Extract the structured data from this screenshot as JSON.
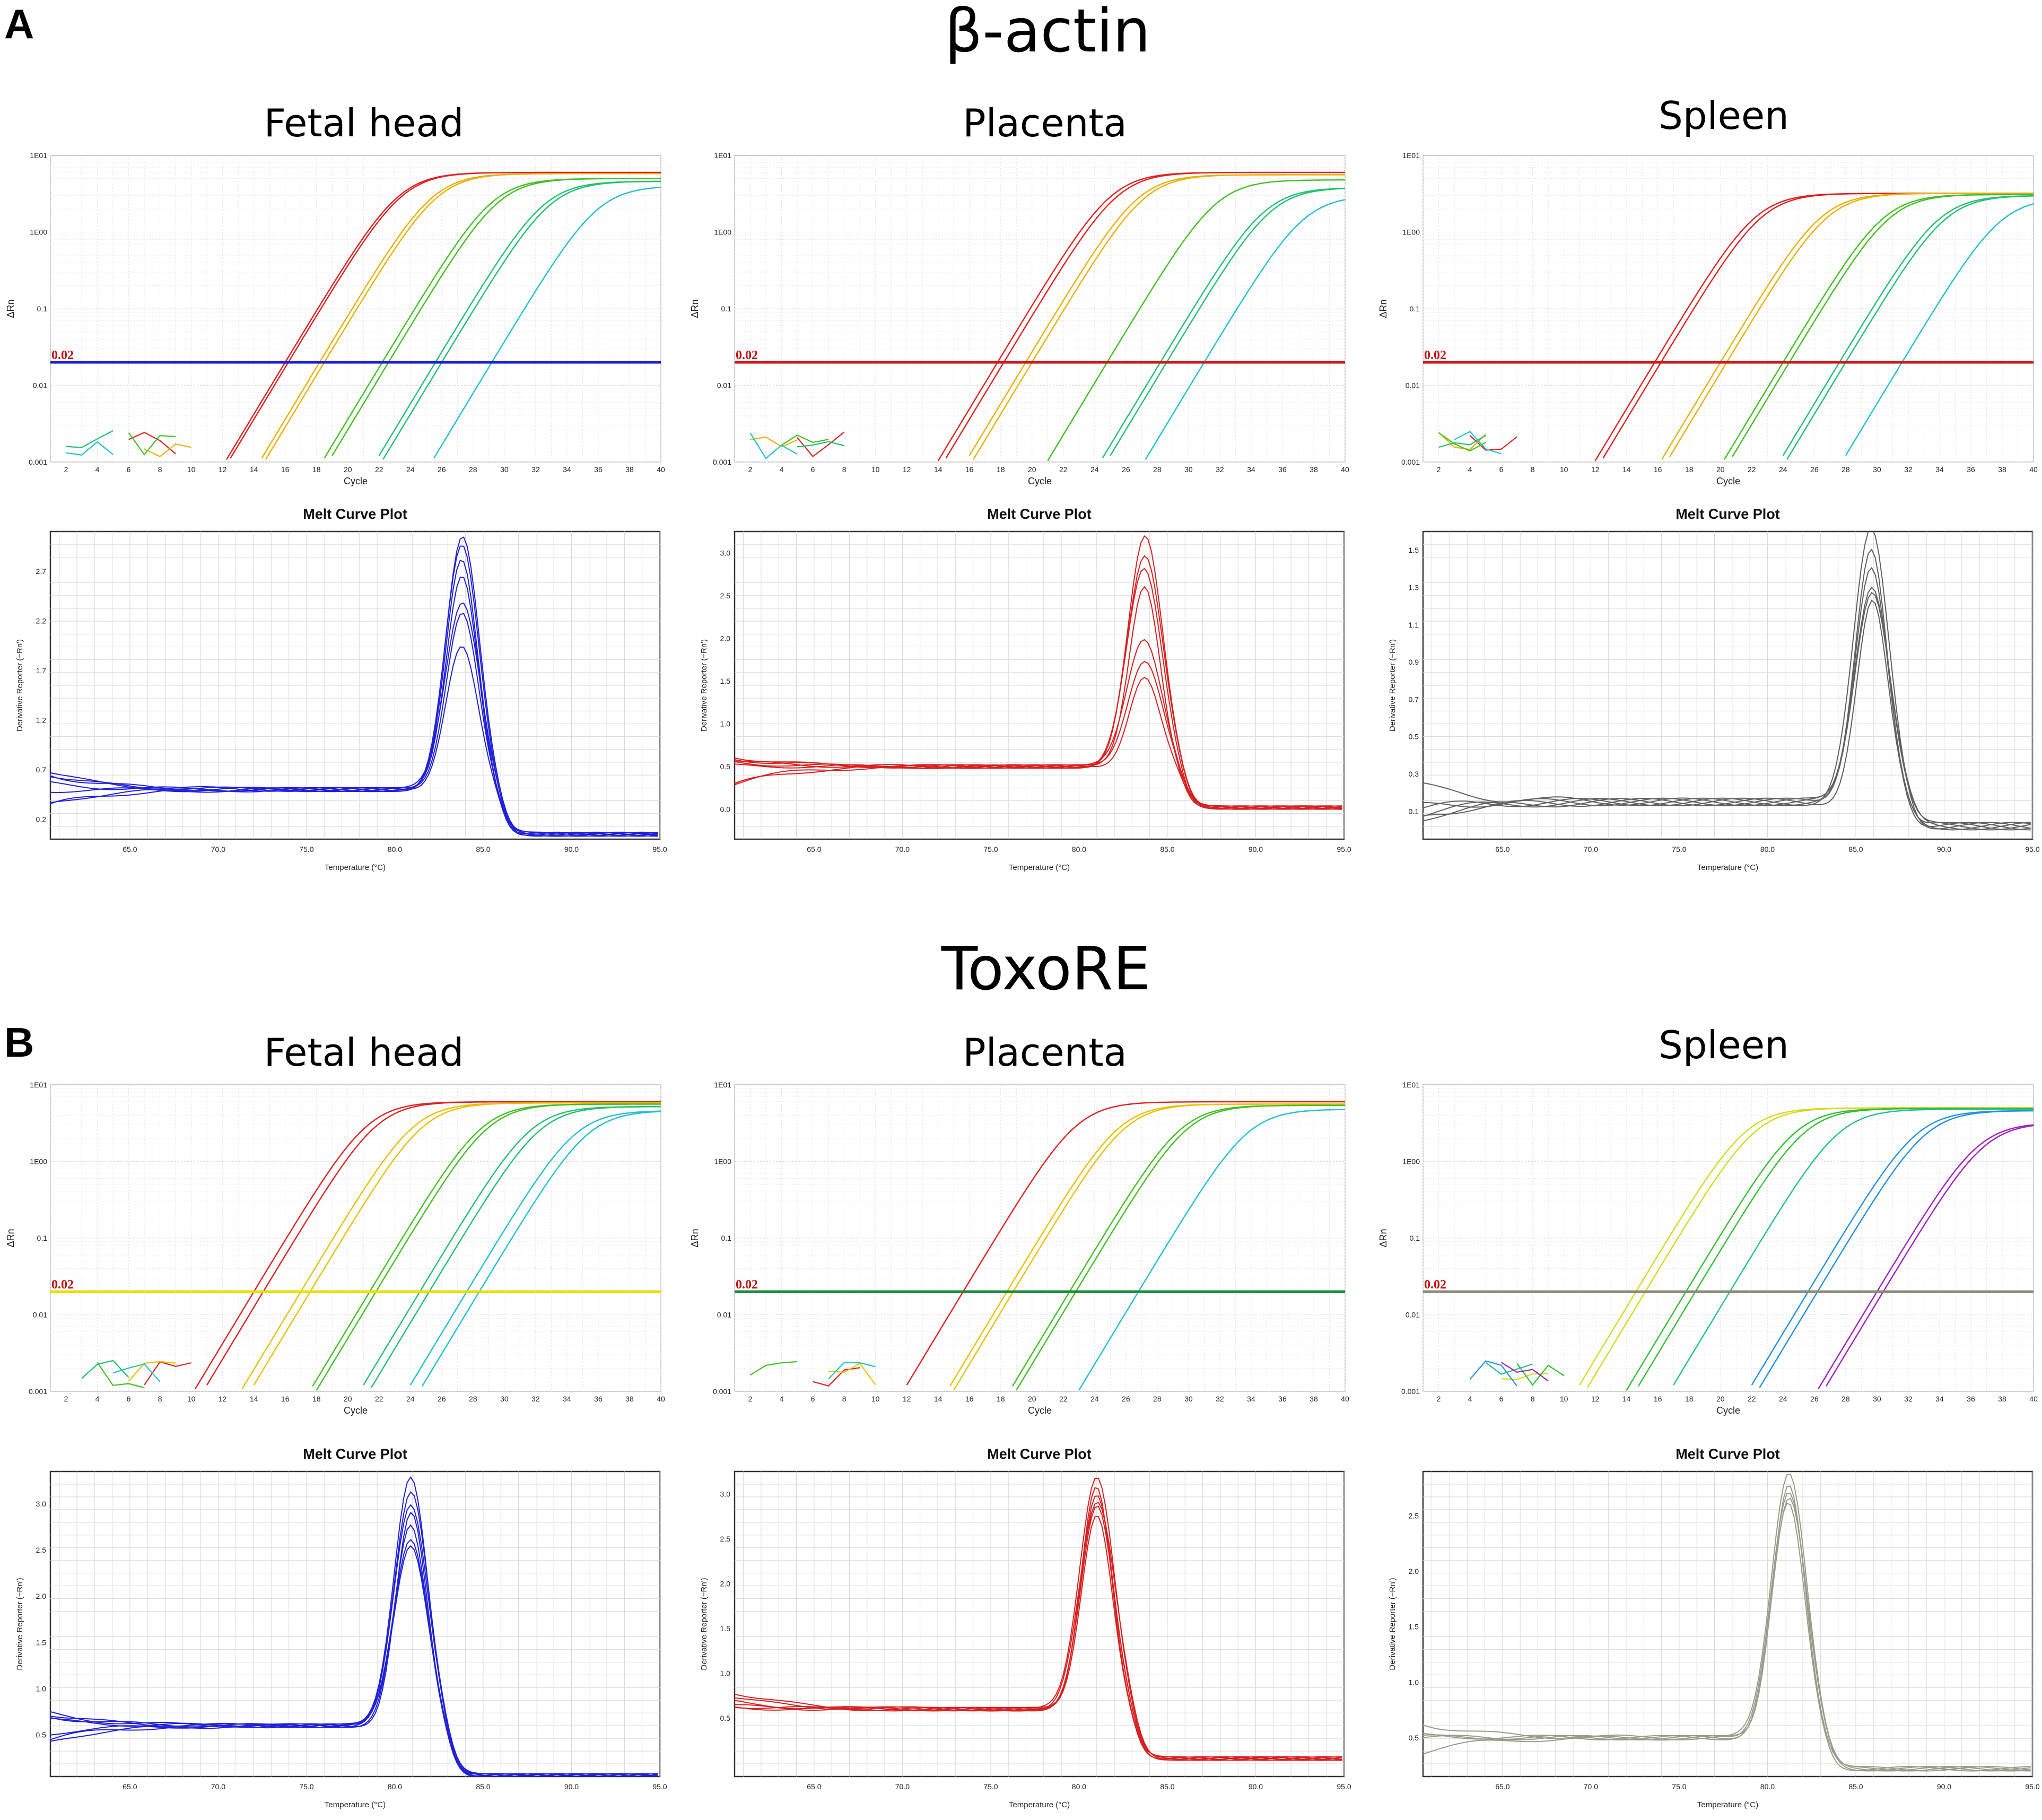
{
  "figure": {
    "panels": [
      {
        "letter": "A",
        "gene": "β-actin"
      },
      {
        "letter": "B",
        "gene": "ToxoRE"
      }
    ],
    "tissues": [
      "Fetal head",
      "Placenta",
      "Spleen"
    ]
  },
  "chart_data": [
    {
      "id": "A-fetal-amp",
      "type": "line",
      "scale": "log",
      "xlabel": "Cycle",
      "ylabel": "ΔRn",
      "xlim": [
        1,
        40
      ],
      "xticks": [
        2,
        4,
        6,
        8,
        10,
        12,
        14,
        16,
        18,
        20,
        22,
        24,
        26,
        28,
        30,
        32,
        34,
        36,
        38,
        40
      ],
      "ylim": [
        0.001,
        10
      ],
      "yticks": [
        "1E01",
        "1E00",
        "0.1",
        "0.01",
        "0.001"
      ],
      "threshold": 0.02,
      "threshold_label": "0.02",
      "threshold_color": "#1c1cd0",
      "series": [
        {
          "color": "#e02020",
          "ct": [
            16.0,
            16.2
          ],
          "plateau": 6.0
        },
        {
          "color": "#e8b000",
          "ct": [
            18.2,
            18.5
          ],
          "plateau": 5.8
        },
        {
          "color": "#40c020",
          "ct": [
            22.2,
            22.6
          ],
          "plateau": 5.0
        },
        {
          "color": "#20c070",
          "ct": [
            25.6,
            26.0
          ],
          "plateau": 4.6
        },
        {
          "color": "#20c0d0",
          "ct": [
            29.2
          ],
          "plateau": 4.0
        }
      ]
    },
    {
      "id": "A-placenta-amp",
      "type": "line",
      "scale": "log",
      "xlabel": "Cycle",
      "ylabel": "ΔRn",
      "xlim": [
        1,
        40
      ],
      "xticks": [
        2,
        4,
        6,
        8,
        10,
        12,
        14,
        16,
        18,
        20,
        22,
        24,
        26,
        28,
        30,
        32,
        34,
        36,
        38,
        40
      ],
      "ylim": [
        0.001,
        10
      ],
      "yticks": [
        "1E01",
        "1E00",
        "0.1",
        "0.01",
        "0.001"
      ],
      "threshold": 0.02,
      "threshold_label": "0.02",
      "threshold_color": "#c81818",
      "series": [
        {
          "color": "#e02020",
          "ct": [
            17.8,
            18.2
          ],
          "plateau": 6.0
        },
        {
          "color": "#e8b000",
          "ct": [
            19.6,
            20.0
          ],
          "plateau": 5.6
        },
        {
          "color": "#40c020",
          "ct": [
            24.8
          ],
          "plateau": 4.8
        },
        {
          "color": "#20c070",
          "ct": [
            28.2,
            28.6
          ],
          "plateau": 3.8
        },
        {
          "color": "#20c0d0",
          "ct": [
            31.0
          ],
          "plateau": 3.0
        }
      ]
    },
    {
      "id": "A-spleen-amp",
      "type": "line",
      "scale": "log",
      "xlabel": "Cycle",
      "ylabel": "ΔRn",
      "xlim": [
        1,
        40
      ],
      "xticks": [
        2,
        4,
        6,
        8,
        10,
        12,
        14,
        16,
        18,
        20,
        22,
        24,
        26,
        28,
        30,
        32,
        34,
        36,
        38,
        40
      ],
      "ylim": [
        0.001,
        10
      ],
      "yticks": [
        "1E01",
        "1E00",
        "0.1",
        "0.01",
        "0.001"
      ],
      "threshold": 0.02,
      "threshold_label": "0.02",
      "threshold_color": "#c81818",
      "series": [
        {
          "color": "#e02020",
          "ct": [
            15.8,
            16.2
          ],
          "plateau": 3.2
        },
        {
          "color": "#e8b000",
          "ct": [
            20.0,
            20.4
          ],
          "plateau": 3.2
        },
        {
          "color": "#40c020",
          "ct": [
            24.0,
            24.4
          ],
          "plateau": 3.1
        },
        {
          "color": "#20c070",
          "ct": [
            27.6,
            28.0
          ],
          "plateau": 3.0
        },
        {
          "color": "#20c0d0",
          "ct": [
            31.6
          ],
          "plateau": 2.8
        }
      ]
    },
    {
      "id": "A-fetal-melt",
      "type": "line",
      "title": "Melt Curve Plot",
      "xlabel": "Temperature (°C)",
      "ylabel": "Derivative Reporter (−Rn')",
      "xlim": [
        60.5,
        95
      ],
      "xticks": [
        "65.0",
        "70.0",
        "75.0",
        "80.0",
        "85.0",
        "90.0",
        "95.0"
      ],
      "ylim": [
        0.0,
        3.1
      ],
      "yticks": [
        "2.7",
        "2.2",
        "1.7",
        "1.2",
        "0.7",
        "0.2"
      ],
      "color": "#2020d8",
      "peak_temp": 83.8,
      "baseline": 0.5,
      "after": 0.05,
      "peaks": [
        3.05,
        2.95,
        2.8,
        2.65,
        2.4,
        2.3,
        1.95
      ]
    },
    {
      "id": "A-placenta-melt",
      "type": "line",
      "title": "Melt Curve Plot",
      "xlabel": "Temperature (°C)",
      "ylabel": "Derivative Reporter (−Rn')",
      "xlim": [
        60.5,
        95
      ],
      "xticks": [
        "65.0",
        "70.0",
        "75.0",
        "80.0",
        "85.0",
        "90.0",
        "95.0"
      ],
      "ylim": [
        -0.35,
        3.25
      ],
      "yticks": [
        "3.0",
        "2.5",
        "2.0",
        "1.5",
        "1.0",
        "0.5",
        "0.0"
      ],
      "color": "#d82020",
      "peak_temp": 83.7,
      "baseline": 0.5,
      "after": 0.02,
      "peaks": [
        3.2,
        2.95,
        2.8,
        2.6,
        2.0,
        1.75,
        1.55
      ]
    },
    {
      "id": "A-spleen-melt",
      "type": "line",
      "title": "Melt Curve Plot",
      "xlabel": "Temperature (°C)",
      "ylabel": "Derivative Reporter (−Rn')",
      "xlim": [
        60.5,
        95
      ],
      "xticks": [
        "65.0",
        "70.0",
        "75.0",
        "80.0",
        "85.0",
        "90.0",
        "95.0"
      ],
      "ylim": [
        -0.05,
        1.6
      ],
      "yticks": [
        "1.5",
        "1.3",
        "1.1",
        "0.9",
        "0.7",
        "0.5",
        "0.3",
        "0.1"
      ],
      "color": "#606060",
      "peak_temp": 85.9,
      "baseline": 0.15,
      "after": 0.02,
      "peaks": [
        1.6,
        1.5,
        1.42,
        1.32,
        1.28,
        1.22
      ]
    },
    {
      "id": "B-fetal-amp",
      "type": "line",
      "scale": "log",
      "xlabel": "Cycle",
      "ylabel": "ΔRn",
      "xlim": [
        1,
        40
      ],
      "xticks": [
        2,
        4,
        6,
        8,
        10,
        12,
        14,
        16,
        18,
        20,
        22,
        24,
        26,
        28,
        30,
        32,
        34,
        36,
        38,
        40
      ],
      "ylim": [
        0.001,
        10
      ],
      "yticks": [
        "1E01",
        "1E00",
        "0.1",
        "0.01",
        "0.001"
      ],
      "threshold": 0.02,
      "threshold_label": "0.02",
      "threshold_color": "#e8e000",
      "series": [
        {
          "color": "#e02020",
          "ct": [
            14.0,
            14.6
          ],
          "plateau": 6.0
        },
        {
          "color": "#e8c000",
          "ct": [
            17.0,
            17.6
          ],
          "plateau": 5.8
        },
        {
          "color": "#40c020",
          "ct": [
            21.4,
            21.8
          ],
          "plateau": 5.6
        },
        {
          "color": "#20c070",
          "ct": [
            24.6,
            25.2
          ],
          "plateau": 5.2
        },
        {
          "color": "#20c0d0",
          "ct": [
            27.6,
            28.4
          ],
          "plateau": 4.6
        }
      ]
    },
    {
      "id": "B-placenta-amp",
      "type": "line",
      "scale": "log",
      "xlabel": "Cycle",
      "ylabel": "ΔRn",
      "xlim": [
        1,
        40
      ],
      "xticks": [
        2,
        4,
        6,
        8,
        10,
        12,
        14,
        16,
        18,
        20,
        22,
        24,
        26,
        28,
        30,
        32,
        34,
        36,
        38,
        40
      ],
      "ylim": [
        0.001,
        10
      ],
      "yticks": [
        "1E01",
        "1E00",
        "0.1",
        "0.01",
        "0.001"
      ],
      "threshold": 0.02,
      "threshold_label": "0.02",
      "threshold_color": "#1a8a3a",
      "series": [
        {
          "color": "#e02020",
          "ct": [
            15.6
          ],
          "plateau": 6.0
        },
        {
          "color": "#e8c000",
          "ct": [
            18.4,
            18.8
          ],
          "plateau": 5.6
        },
        {
          "color": "#40c020",
          "ct": [
            22.4,
            22.8
          ],
          "plateau": 5.4
        },
        {
          "color": "#20c0d0",
          "ct": [
            26.8
          ],
          "plateau": 4.8
        }
      ]
    },
    {
      "id": "B-spleen-amp",
      "type": "line",
      "scale": "log",
      "xlabel": "Cycle",
      "ylabel": "ΔRn",
      "xlim": [
        1,
        40
      ],
      "xticks": [
        2,
        4,
        6,
        8,
        10,
        12,
        14,
        16,
        18,
        20,
        22,
        24,
        26,
        28,
        30,
        32,
        34,
        36,
        38,
        40
      ],
      "ylim": [
        0.001,
        10
      ],
      "yticks": [
        "1E01",
        "1E00",
        "0.1",
        "0.01",
        "0.001"
      ],
      "threshold": 0.02,
      "threshold_label": "0.02",
      "threshold_color": "#8a8a78",
      "series": [
        {
          "color": "#d8d820",
          "ct": [
            14.6,
            15.2
          ],
          "plateau": 5.0
        },
        {
          "color": "#30c030",
          "ct": [
            17.8,
            18.4
          ],
          "plateau": 4.9
        },
        {
          "color": "#20c090",
          "ct": [
            20.6
          ],
          "plateau": 4.8
        },
        {
          "color": "#2090e0",
          "ct": [
            25.6,
            26.2
          ],
          "plateau": 4.6
        },
        {
          "color": "#a020c0",
          "ct": [
            30.0,
            30.4
          ],
          "plateau": 3.2
        }
      ]
    },
    {
      "id": "B-fetal-melt",
      "type": "line",
      "title": "Melt Curve Plot",
      "xlabel": "Temperature (°C)",
      "ylabel": "Derivative Reporter (−Rn')",
      "xlim": [
        60.5,
        95
      ],
      "xticks": [
        "65.0",
        "70.0",
        "75.0",
        "80.0",
        "85.0",
        "90.0",
        "95.0"
      ],
      "ylim": [
        0.05,
        3.35
      ],
      "yticks": [
        "3.0",
        "2.5",
        "2.0",
        "1.5",
        "1.0",
        "0.5"
      ],
      "color": "#2020d8",
      "peak_temp": 80.9,
      "baseline": 0.6,
      "after": 0.06,
      "peaks": [
        3.3,
        3.15,
        3.0,
        2.9,
        2.75,
        2.6,
        2.55
      ]
    },
    {
      "id": "B-placenta-melt",
      "type": "line",
      "title": "Melt Curve Plot",
      "xlabel": "Temperature (°C)",
      "ylabel": "Derivative Reporter (−Rn')",
      "xlim": [
        60.5,
        95
      ],
      "xticks": [
        "65.0",
        "70.0",
        "75.0",
        "80.0",
        "85.0",
        "90.0",
        "95.0"
      ],
      "ylim": [
        -0.15,
        3.25
      ],
      "yticks": [
        "3.0",
        "2.5",
        "2.0",
        "1.5",
        "1.0",
        "0.5"
      ],
      "color": "#d82020",
      "peak_temp": 81.0,
      "baseline": 0.6,
      "after": 0.05,
      "peaks": [
        3.2,
        3.1,
        3.0,
        2.9,
        2.85,
        2.75
      ]
    },
    {
      "id": "B-spleen-melt",
      "type": "line",
      "title": "Melt Curve Plot",
      "xlabel": "Temperature (°C)",
      "ylabel": "Derivative Reporter (−Rn')",
      "xlim": [
        60.5,
        95
      ],
      "xticks": [
        "65.0",
        "70.0",
        "75.0",
        "80.0",
        "85.0",
        "90.0",
        "95.0"
      ],
      "ylim": [
        0.15,
        2.9
      ],
      "yticks": [
        "2.5",
        "2.0",
        "1.5",
        "1.0",
        "0.5"
      ],
      "color": "#9a9a88",
      "peak_temp": 81.2,
      "baseline": 0.5,
      "after": 0.22,
      "peaks": [
        2.9,
        2.8,
        2.72,
        2.65,
        2.6
      ]
    }
  ]
}
